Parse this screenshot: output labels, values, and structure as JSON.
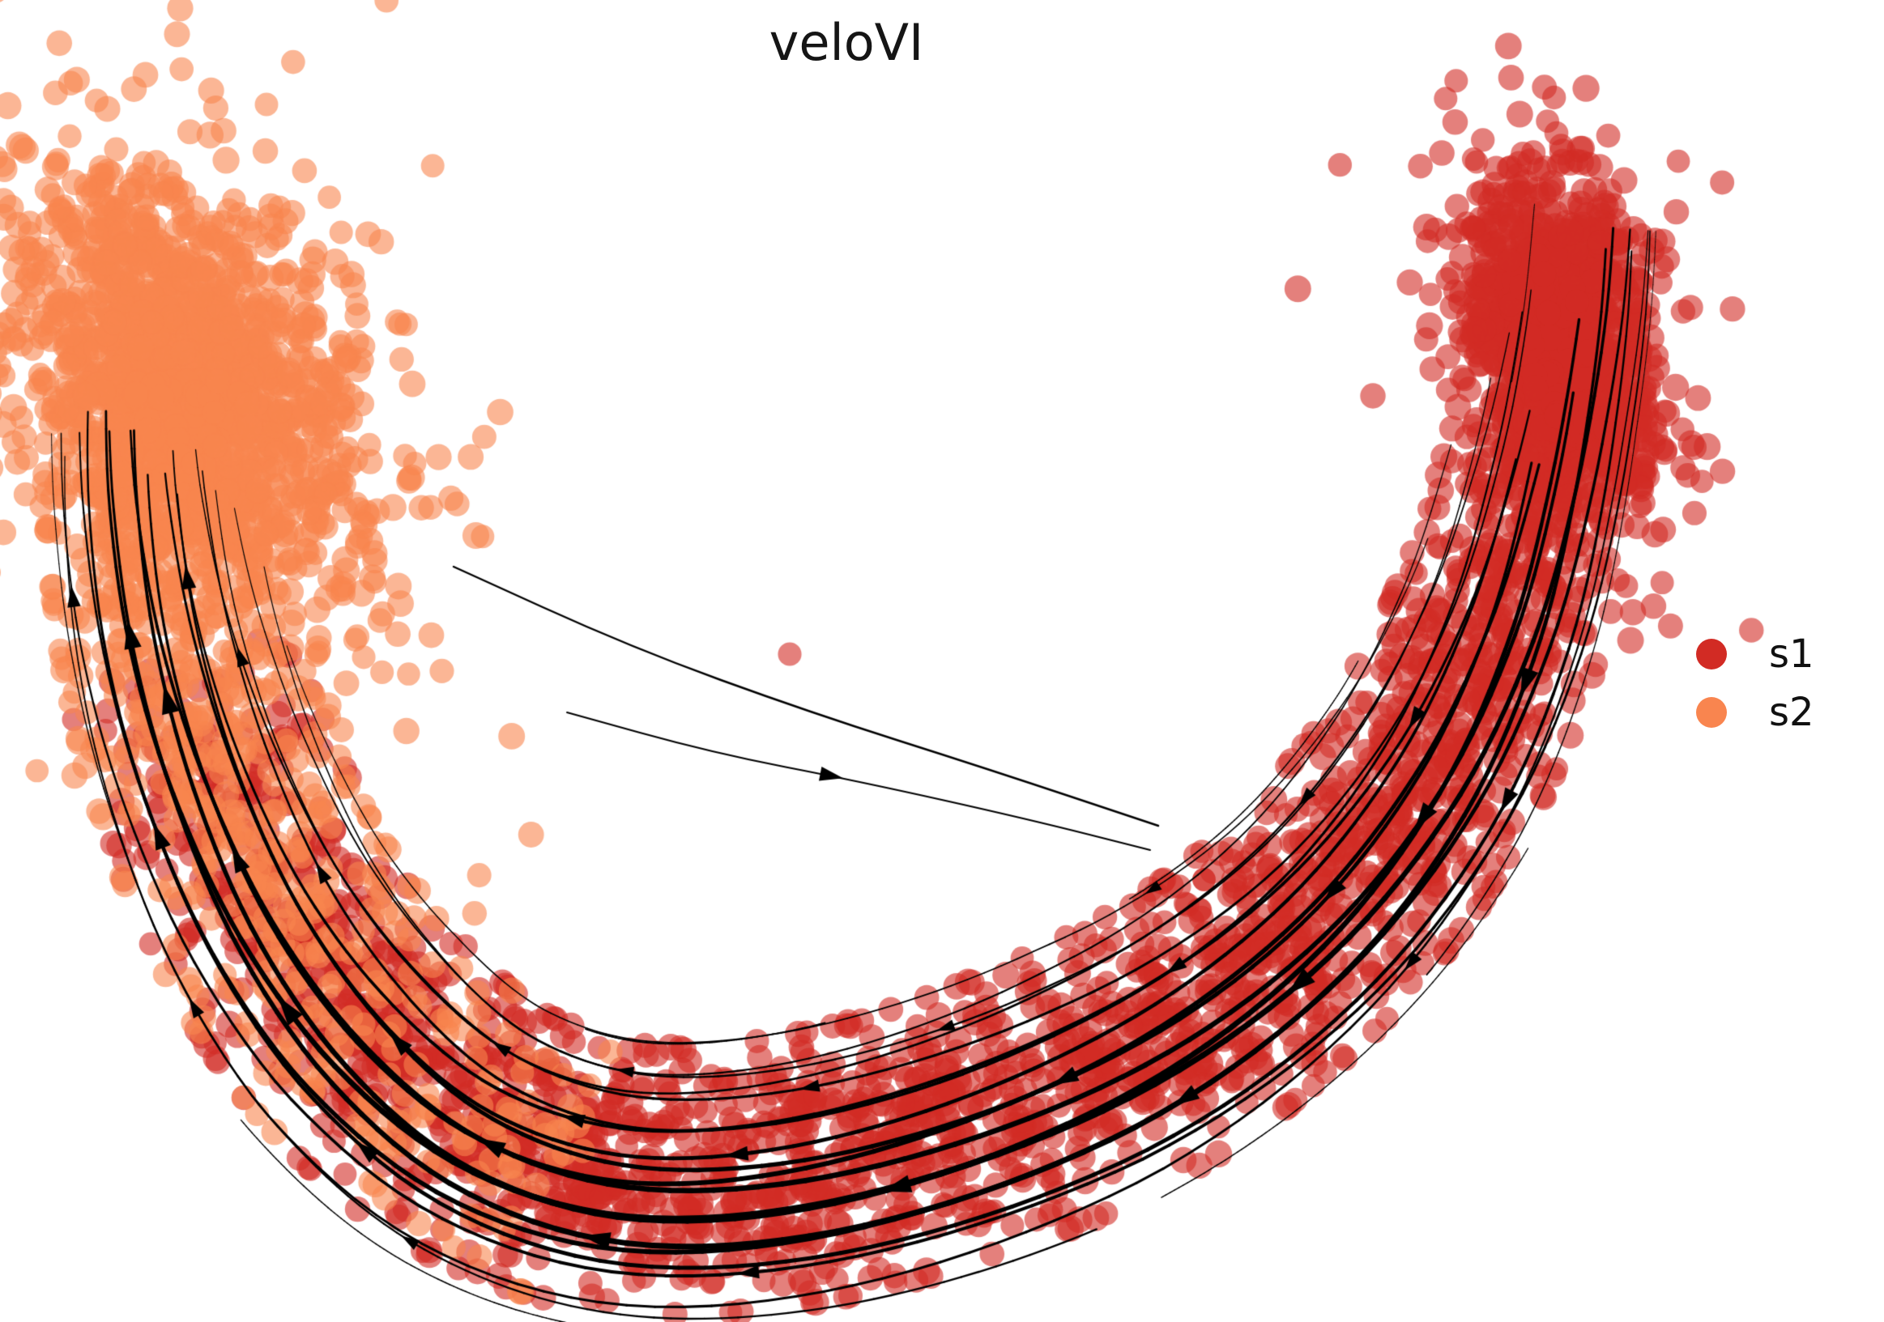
{
  "chart_data": {
    "type": "scatter_streamplot",
    "title": "veloVI",
    "background": "#ffffff",
    "axes": {
      "visible": false,
      "grid": false
    },
    "legend": [
      {
        "label": "s1",
        "color": "#d22b24"
      },
      {
        "label": "s2",
        "color": "#f9854f"
      }
    ],
    "legend_position": "right-center",
    "flow": "streamlines run from the s1 cluster (top right) around the crescent into the s2 cluster (top left); one small interior eddy line flows back to the right",
    "stream_color": "#000000",
    "point": {
      "radius": 15.5,
      "alpha": 0.6
    },
    "seed": 20,
    "backbone": [
      [
        1950,
        240
      ],
      [
        1935,
        400
      ],
      [
        1900,
        590
      ],
      [
        1845,
        780
      ],
      [
        1755,
        965
      ],
      [
        1620,
        1135
      ],
      [
        1440,
        1275
      ],
      [
        1220,
        1380
      ],
      [
        985,
        1445
      ],
      [
        775,
        1455
      ],
      [
        600,
        1400
      ],
      [
        462,
        1290
      ],
      [
        350,
        1140
      ],
      [
        268,
        965
      ],
      [
        215,
        790
      ],
      [
        188,
        620
      ],
      [
        180,
        470
      ]
    ],
    "halfwidth_profile": [
      [
        0.0,
        95
      ],
      [
        0.1,
        105
      ],
      [
        0.25,
        130
      ],
      [
        0.4,
        150
      ],
      [
        0.55,
        150
      ],
      [
        0.7,
        150
      ],
      [
        0.85,
        132
      ],
      [
        1.0,
        110
      ]
    ],
    "populations": [
      {
        "name": "s1-cluster-blob",
        "series": "s1",
        "kind": "blob",
        "count": 950,
        "cx": 1928,
        "cy": 430,
        "angle_deg": 76,
        "sigma_major": 105,
        "sigma_minor": 50
      },
      {
        "name": "s1-cluster-halo",
        "series": "s1",
        "kind": "blob",
        "count": 130,
        "cx": 1925,
        "cy": 440,
        "angle_deg": 76,
        "sigma_major": 170,
        "sigma_minor": 85
      },
      {
        "name": "s1-band",
        "series": "s1",
        "kind": "band",
        "count": 2450,
        "t_min": 0.02,
        "t_max": 0.87,
        "spread": 0.55,
        "weights": [
          [
            0.02,
            0.7
          ],
          [
            0.15,
            1.0
          ],
          [
            0.35,
            1.3
          ],
          [
            0.6,
            1.15
          ],
          [
            0.75,
            0.8
          ],
          [
            0.87,
            0.35
          ]
        ]
      },
      {
        "name": "s2-cluster-blob",
        "series": "s2",
        "kind": "blob",
        "count": 1350,
        "cx": 228,
        "cy": 470,
        "angle_deg": 57,
        "sigma_major": 140,
        "sigma_minor": 88
      },
      {
        "name": "s2-cluster-halo",
        "series": "s2",
        "kind": "blob",
        "count": 240,
        "cx": 235,
        "cy": 480,
        "angle_deg": 57,
        "sigma_major": 265,
        "sigma_minor": 165
      },
      {
        "name": "s2-band",
        "series": "s2",
        "kind": "band",
        "count": 760,
        "t_min": 0.58,
        "t_max": 1.0,
        "spread": 0.6,
        "weights": [
          [
            0.58,
            0.3
          ],
          [
            0.7,
            0.6
          ],
          [
            0.85,
            1.0
          ],
          [
            1.0,
            1.4
          ]
        ]
      }
    ],
    "outliers": [
      {
        "series": "s2",
        "x": 329,
        "y": 129
      },
      {
        "series": "s2",
        "x": 92,
        "y": 958
      },
      {
        "series": "s1",
        "x": 1695,
        "y": 489
      },
      {
        "series": "s1",
        "x": 975,
        "y": 808
      }
    ],
    "streams": {
      "speed_profile": {
        "base": 0.4,
        "gain": 0.8,
        "power": 1.1
      },
      "main": [
        {
          "u": -1.1,
          "t0": 0.02,
          "t1": 0.3,
          "lw": 1.6,
          "amp": 10,
          "ph": 1.0,
          "arrows": []
        },
        {
          "u": -1.1,
          "t0": 0.42,
          "t1": 0.97,
          "lw": 2.0,
          "amp": 14,
          "ph": 2.1,
          "arrows": [
            0.63
          ]
        },
        {
          "u": -0.97,
          "t0": 0.02,
          "t1": 0.96,
          "lw": 2.6,
          "amp": 12,
          "ph": 0.4,
          "arrows": [
            0.3,
            0.74
          ]
        },
        {
          "u": -0.85,
          "t0": 0.02,
          "t1": 0.97,
          "lw": 3.3,
          "amp": 10,
          "ph": 3.9,
          "arrows": [
            0.52,
            0.9
          ]
        },
        {
          "u": -0.73,
          "t0": 0.03,
          "t1": 0.97,
          "lw": 4.2,
          "amp": 9,
          "ph": 2.7,
          "arrows": [
            0.24,
            0.66
          ]
        },
        {
          "u": -0.61,
          "t0": 0.02,
          "t1": 0.98,
          "lw": 5.0,
          "amp": 8,
          "ph": 5.2,
          "arrows": [
            0.38,
            0.8
          ]
        },
        {
          "u": -0.49,
          "t0": 0.03,
          "t1": 0.97,
          "lw": 5.8,
          "amp": 11,
          "ph": 1.7,
          "arrows": [
            0.2,
            0.57,
            0.88
          ]
        },
        {
          "u": -0.37,
          "t0": 0.02,
          "t1": 0.98,
          "lw": 6.4,
          "amp": 9,
          "ph": 4.4,
          "arrows": [
            0.33,
            0.72
          ]
        },
        {
          "u": -0.25,
          "t0": 0.06,
          "t1": 0.97,
          "lw": 6.1,
          "amp": 12,
          "ph": 0.9,
          "arrows": [
            0.47,
            0.85
          ]
        },
        {
          "u": -0.13,
          "t0": 0.09,
          "t1": 0.97,
          "lw": 5.5,
          "amp": 10,
          "ph": 3.3,
          "arrows": [
            0.26,
            0.62
          ]
        },
        {
          "u": -0.01,
          "t0": 0.12,
          "t1": 0.95,
          "lw": 4.9,
          "amp": 13,
          "ph": 5.8,
          "arrows": [
            0.41,
            0.78
          ]
        },
        {
          "u": 0.11,
          "t0": 0.12,
          "t1": 0.95,
          "lw": 4.5,
          "amp": 11,
          "ph": 2.2,
          "arrows": [
            0.3,
            0.68
          ]
        },
        {
          "u": 0.23,
          "t0": 0.12,
          "t1": 0.94,
          "lw": 4.0,
          "amp": 9,
          "ph": 0.2,
          "arrows": [
            0.52,
            0.9
          ]
        },
        {
          "u": 0.35,
          "t0": 0.1,
          "t1": 0.96,
          "lw": 3.6,
          "amp": 12,
          "ph": 4.8,
          "arrows": [
            0.23,
            0.59
          ]
        },
        {
          "u": 0.47,
          "t0": 0.06,
          "t1": 0.95,
          "lw": 3.1,
          "amp": 10,
          "ph": 1.4,
          "arrows": [
            0.36,
            0.76
          ]
        },
        {
          "u": 0.59,
          "t0": 0.05,
          "t1": 0.96,
          "lw": 2.7,
          "amp": 13,
          "ph": 3.6,
          "arrows": [
            0.49,
            0.86
          ]
        },
        {
          "u": 0.71,
          "t0": 0.07,
          "t1": 0.94,
          "lw": 2.3,
          "amp": 11,
          "ph": 5.5,
          "arrows": [
            0.28,
            0.64
          ]
        },
        {
          "u": 0.83,
          "t0": 0.09,
          "t1": 0.93,
          "lw": 2.0,
          "amp": 9,
          "ph": 2.9,
          "arrows": [
            0.44
          ]
        },
        {
          "u": 0.95,
          "t0": 0.12,
          "t1": 0.9,
          "lw": 1.8,
          "amp": 12,
          "ph": 0.7,
          "arrows": [
            0.57
          ]
        },
        {
          "u": 1.07,
          "t0": 0.16,
          "t1": 0.86,
          "lw": 1.5,
          "amp": 10,
          "ph": 4.1,
          "arrows": [
            0.35
          ]
        }
      ],
      "fragments": [
        {
          "u": -1.22,
          "t0": 0.55,
          "t1": 0.7,
          "lw": 1.3,
          "amp": 6,
          "ph": 1.1,
          "arrows": []
        },
        {
          "u": -1.22,
          "t0": 0.25,
          "t1": 0.4,
          "lw": 1.3,
          "amp": 7,
          "ph": 5.0,
          "arrows": []
        },
        {
          "u": 1.17,
          "t0": 0.22,
          "t1": 0.36,
          "lw": 1.4,
          "amp": 7,
          "ph": 2.6,
          "arrows": []
        },
        {
          "u": 1.16,
          "t0": 0.48,
          "t1": 0.6,
          "lw": 1.5,
          "amp": 6,
          "ph": 0.3,
          "arrows": []
        },
        {
          "u": 0.52,
          "t0": 0.01,
          "t1": 0.09,
          "lw": 1.6,
          "amp": 5,
          "ph": 2.0,
          "arrows": []
        }
      ],
      "interior": [
        {
          "pts": [
            [
              560,
              700
            ],
            [
              780,
              800
            ],
            [
              1000,
              880
            ],
            [
              1220,
              950
            ],
            [
              1430,
              1020
            ]
          ],
          "lw": 2.4,
          "arrows": []
        },
        {
          "pts": [
            [
              700,
              880
            ],
            [
              880,
              930
            ],
            [
              1060,
              965
            ],
            [
              1270,
              1012
            ],
            [
              1420,
              1050
            ]
          ],
          "lw": 2.0,
          "arrows": [
            0.45
          ]
        }
      ]
    }
  }
}
